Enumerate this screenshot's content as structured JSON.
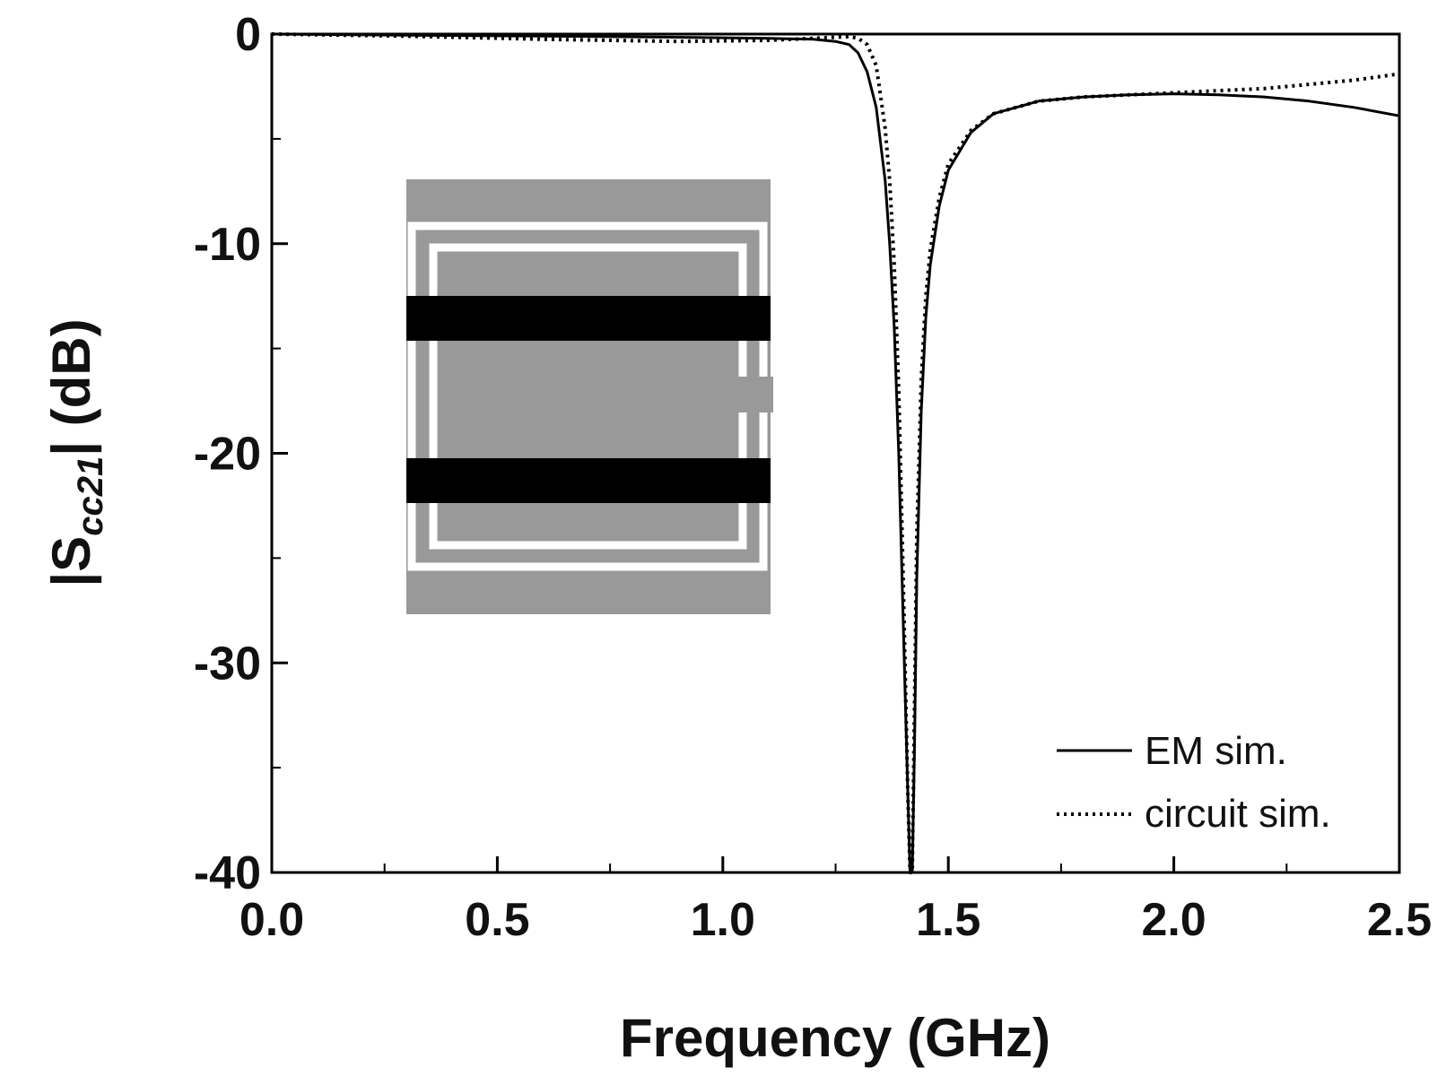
{
  "chart_data": {
    "type": "line",
    "title": "",
    "xlabel": "Frequency (GHz)",
    "ylabel": {
      "prefix": "|S",
      "subscript": "cc21",
      "suffix": "| (dB)"
    },
    "xlim": [
      0.0,
      2.5
    ],
    "ylim": [
      -40,
      0
    ],
    "x_ticks": [
      "0.0",
      "0.5",
      "1.0",
      "1.5",
      "2.0",
      "2.5"
    ],
    "x_tick_values": [
      0.0,
      0.5,
      1.0,
      1.5,
      2.0,
      2.5
    ],
    "y_ticks": [
      "0",
      "-10",
      "-20",
      "-30",
      "-40"
    ],
    "y_tick_values": [
      0,
      -10,
      -20,
      -30,
      -40
    ],
    "grid": false,
    "legend_position": "bottom-right",
    "inset": "planar resonator layout (gray substrate, white rings, two black strip lines)",
    "series": [
      {
        "name": "EM sim.",
        "style": "solid",
        "color": "#000000",
        "x": [
          0.0,
          0.3,
          0.6,
          0.9,
          1.1,
          1.2,
          1.25,
          1.28,
          1.3,
          1.32,
          1.34,
          1.36,
          1.37,
          1.38,
          1.39,
          1.4,
          1.41,
          1.415,
          1.42,
          1.425,
          1.43,
          1.44,
          1.45,
          1.46,
          1.48,
          1.5,
          1.55,
          1.6,
          1.7,
          1.8,
          1.9,
          2.0,
          2.1,
          2.2,
          2.3,
          2.4,
          2.5
        ],
        "y": [
          0.0,
          -0.05,
          -0.1,
          -0.15,
          -0.2,
          -0.25,
          -0.35,
          -0.5,
          -0.9,
          -1.8,
          -3.5,
          -7.0,
          -10.0,
          -14.0,
          -20.0,
          -28.0,
          -36.0,
          -40.0,
          -40.0,
          -34.0,
          -26.0,
          -18.0,
          -13.5,
          -11.0,
          -8.2,
          -6.5,
          -4.7,
          -3.8,
          -3.2,
          -3.0,
          -2.9,
          -2.85,
          -2.9,
          -3.0,
          -3.2,
          -3.5,
          -3.9
        ]
      },
      {
        "name": "circuit sim.",
        "style": "dotted",
        "color": "#000000",
        "x": [
          0.0,
          0.3,
          0.6,
          0.9,
          1.1,
          1.2,
          1.25,
          1.28,
          1.3,
          1.32,
          1.34,
          1.36,
          1.37,
          1.38,
          1.39,
          1.4,
          1.41,
          1.415,
          1.42,
          1.425,
          1.43,
          1.44,
          1.45,
          1.46,
          1.48,
          1.5,
          1.55,
          1.6,
          1.7,
          1.8,
          1.9,
          2.0,
          2.1,
          2.2,
          2.3,
          2.4,
          2.5
        ],
        "y": [
          0.0,
          -0.1,
          -0.25,
          -0.35,
          -0.3,
          -0.2,
          -0.15,
          -0.12,
          -0.2,
          -0.5,
          -1.5,
          -4.5,
          -7.0,
          -11.0,
          -17.0,
          -26.0,
          -36.0,
          -40.0,
          -40.0,
          -32.0,
          -24.0,
          -16.5,
          -12.5,
          -10.3,
          -7.8,
          -6.2,
          -4.6,
          -3.8,
          -3.2,
          -3.0,
          -2.9,
          -2.8,
          -2.7,
          -2.6,
          -2.4,
          -2.2,
          -1.9
        ]
      }
    ]
  }
}
